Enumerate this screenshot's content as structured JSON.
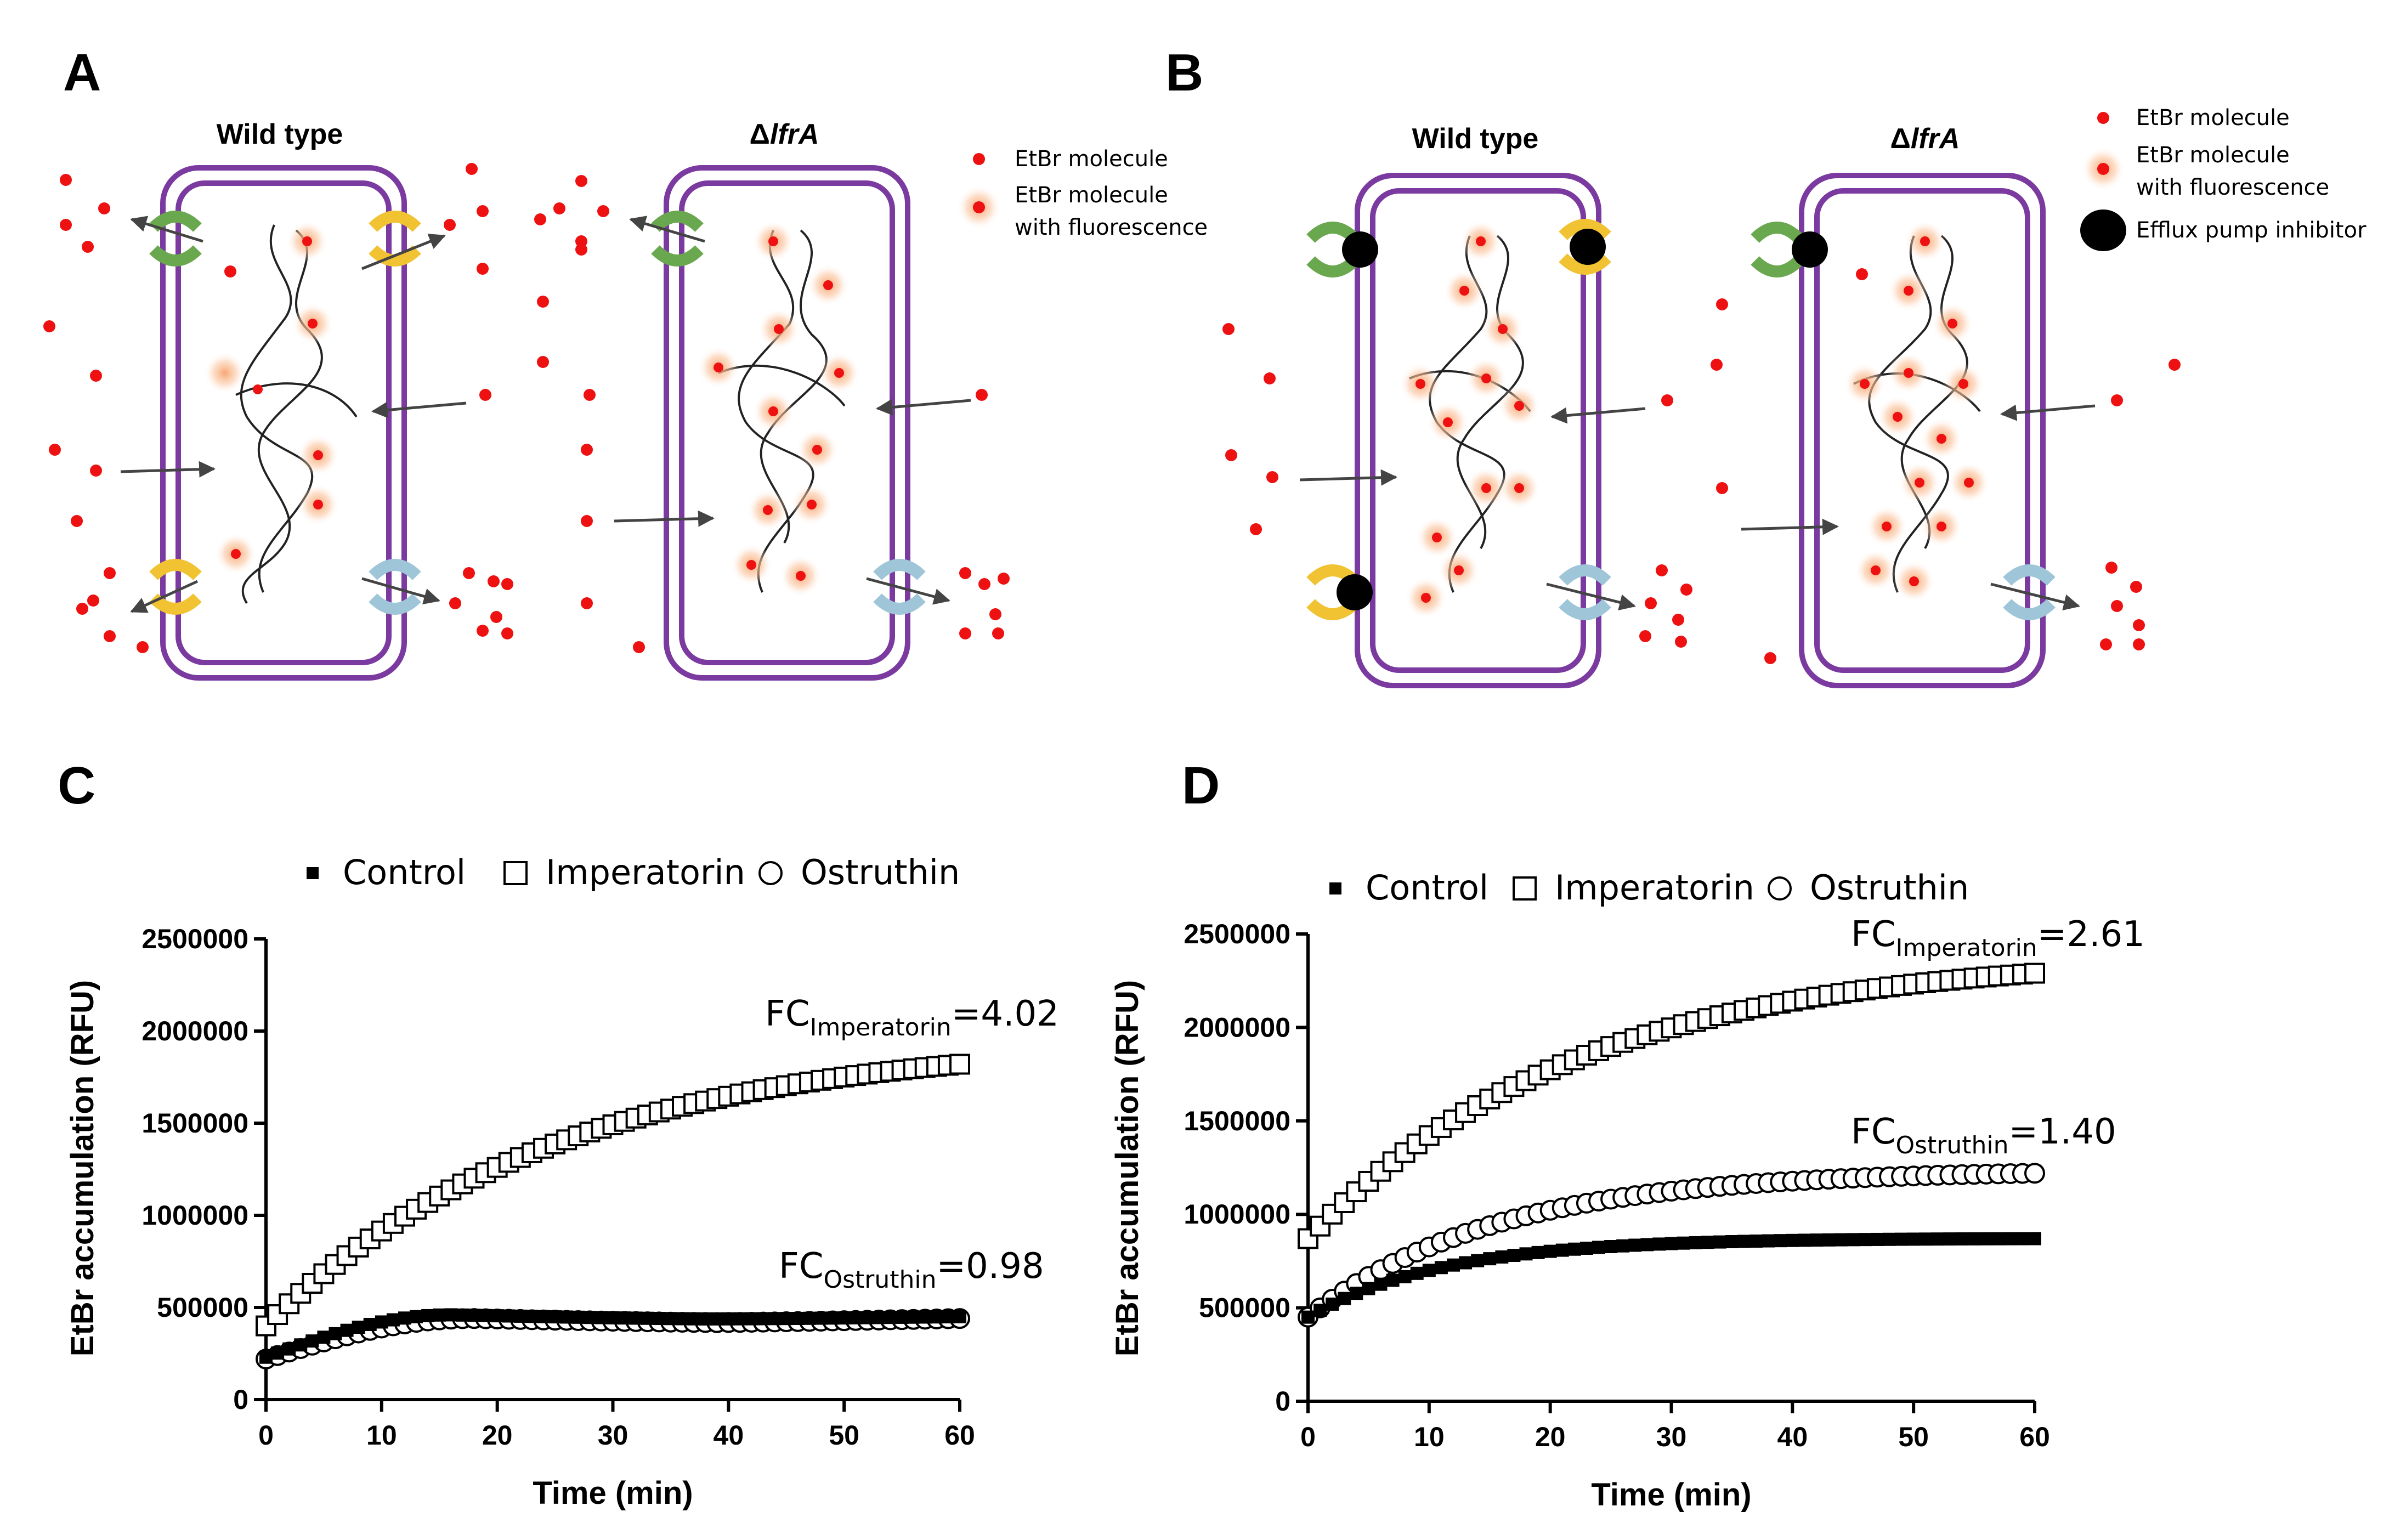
{
  "panels": {
    "a": {
      "letter": "A",
      "wild_type_title": "Wild type",
      "mutant_delta": "Δ",
      "mutant_gene": "lfrA",
      "legend": {
        "etbr": "EtBr molecule",
        "etbr_fluor_line1": "EtBr molecule",
        "etbr_fluor_line2": "with fluorescence"
      }
    },
    "b": {
      "letter": "B",
      "wild_type_title": "Wild type",
      "mutant_delta": "Δ",
      "mutant_gene": "lfrA",
      "legend": {
        "etbr": "EtBr molecule",
        "etbr_fluor_line1": "EtBr molecule",
        "etbr_fluor_line2": "with fluorescence",
        "inhibitor": "Efflux pump inhibitor"
      }
    }
  },
  "colors": {
    "membrane": "#7a3aa0",
    "etbr": "#ee1111",
    "glow": "#f7a06a",
    "pump_green": "#6aa84f",
    "pump_yellow": "#f1c232",
    "pump_blue": "#9fc5d8",
    "arrow": "#444444"
  },
  "chart_data": [
    {
      "panel": "C",
      "type": "scatter",
      "legend": [
        "Control",
        "Imperatorin",
        "Ostruthin"
      ],
      "xlabel": "Time (min)",
      "ylabel": "EtBr accumulation (RFU)",
      "xlim": [
        0,
        60
      ],
      "ylim": [
        0,
        2500000
      ],
      "xticks": [
        "0",
        "10",
        "20",
        "30",
        "40",
        "50",
        "60"
      ],
      "yticks": [
        "0",
        "500000",
        "1000000",
        "1500000",
        "2000000",
        "2500000"
      ],
      "annotations": [
        {
          "fc": "FC",
          "sub": "Imperatorin",
          "value": "=4.02"
        },
        {
          "fc": "FC",
          "sub": "Ostruthin",
          "value": "=0.98"
        }
      ],
      "series": [
        {
          "name": "Control",
          "marker": "filled-square",
          "start": 230000,
          "mode": "hump",
          "peak": 460000,
          "peak_t": 16,
          "end": 450000
        },
        {
          "name": "Imperatorin",
          "marker": "open-square",
          "start": 400000,
          "mode": "exp",
          "end": 1820000,
          "plateau": 1920000,
          "k": 0.04
        },
        {
          "name": "Ostruthin",
          "marker": "open-circle",
          "start": 220000,
          "mode": "hump",
          "peak": 440000,
          "peak_t": 18,
          "end": 440000
        }
      ]
    },
    {
      "panel": "D",
      "type": "scatter",
      "legend": [
        "Control",
        "Imperatorin",
        "Ostruthin"
      ],
      "xlabel": "Time (min)",
      "ylabel": "EtBr accumulation (RFU)",
      "xlim": [
        0,
        60
      ],
      "ylim": [
        0,
        2500000
      ],
      "xticks": [
        "0",
        "10",
        "20",
        "30",
        "40",
        "50",
        "60"
      ],
      "yticks": [
        "0",
        "500000",
        "1000000",
        "1500000",
        "2000000",
        "2500000"
      ],
      "annotations": [
        {
          "fc": "FC",
          "sub": "Imperatorin",
          "value": "=2.61"
        },
        {
          "fc": "FC",
          "sub": "Ostruthin",
          "value": "=1.40"
        }
      ],
      "series": [
        {
          "name": "Control",
          "marker": "filled-square",
          "start": 450000,
          "mode": "exp",
          "end": 870000,
          "plateau": 875000,
          "k": 0.09
        },
        {
          "name": "Imperatorin",
          "marker": "open-square",
          "start": 870000,
          "mode": "exp",
          "end": 2290000,
          "plateau": 2450000,
          "k": 0.045
        },
        {
          "name": "Ostruthin",
          "marker": "open-circle",
          "start": 450000,
          "mode": "exp",
          "end": 1220000,
          "plateau": 1240000,
          "k": 0.065
        }
      ]
    }
  ]
}
